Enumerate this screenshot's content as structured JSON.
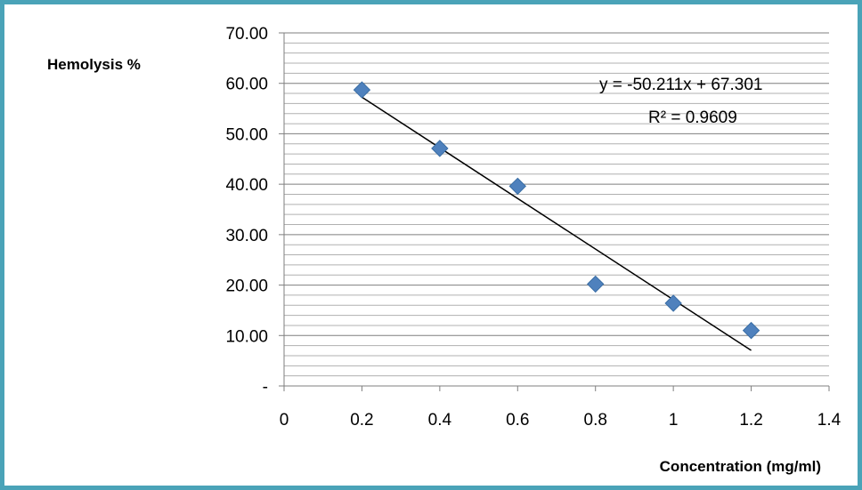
{
  "chart_data": {
    "type": "scatter",
    "ylabel": "Hemolysis %",
    "xlabel": "Concentration (mg/ml)",
    "xlim": [
      0,
      1.4
    ],
    "ylim": [
      0,
      70
    ],
    "x_ticks": [
      "0",
      "0.2",
      "0.4",
      "0.6",
      "0.8",
      "1",
      "1.2",
      "1.4"
    ],
    "y_ticks": [
      "-",
      "10.00",
      "20.00",
      "30.00",
      "40.00",
      "50.00",
      "60.00",
      "70.00"
    ],
    "minor_grid_step": 2,
    "grid": true,
    "marker_color": "#4f81bd",
    "points": [
      {
        "x": 0.2,
        "y": 58.7
      },
      {
        "x": 0.4,
        "y": 47.1
      },
      {
        "x": 0.6,
        "y": 39.6
      },
      {
        "x": 0.8,
        "y": 20.2
      },
      {
        "x": 1.0,
        "y": 16.4
      },
      {
        "x": 1.2,
        "y": 11.0
      }
    ],
    "trendline": {
      "type": "linear",
      "slope": -50.211,
      "intercept": 67.301,
      "x_range": [
        0.2,
        1.2
      ],
      "equation_text": "y = -50.211x + 67.301",
      "r2_text": "R² = 0.9609"
    }
  }
}
